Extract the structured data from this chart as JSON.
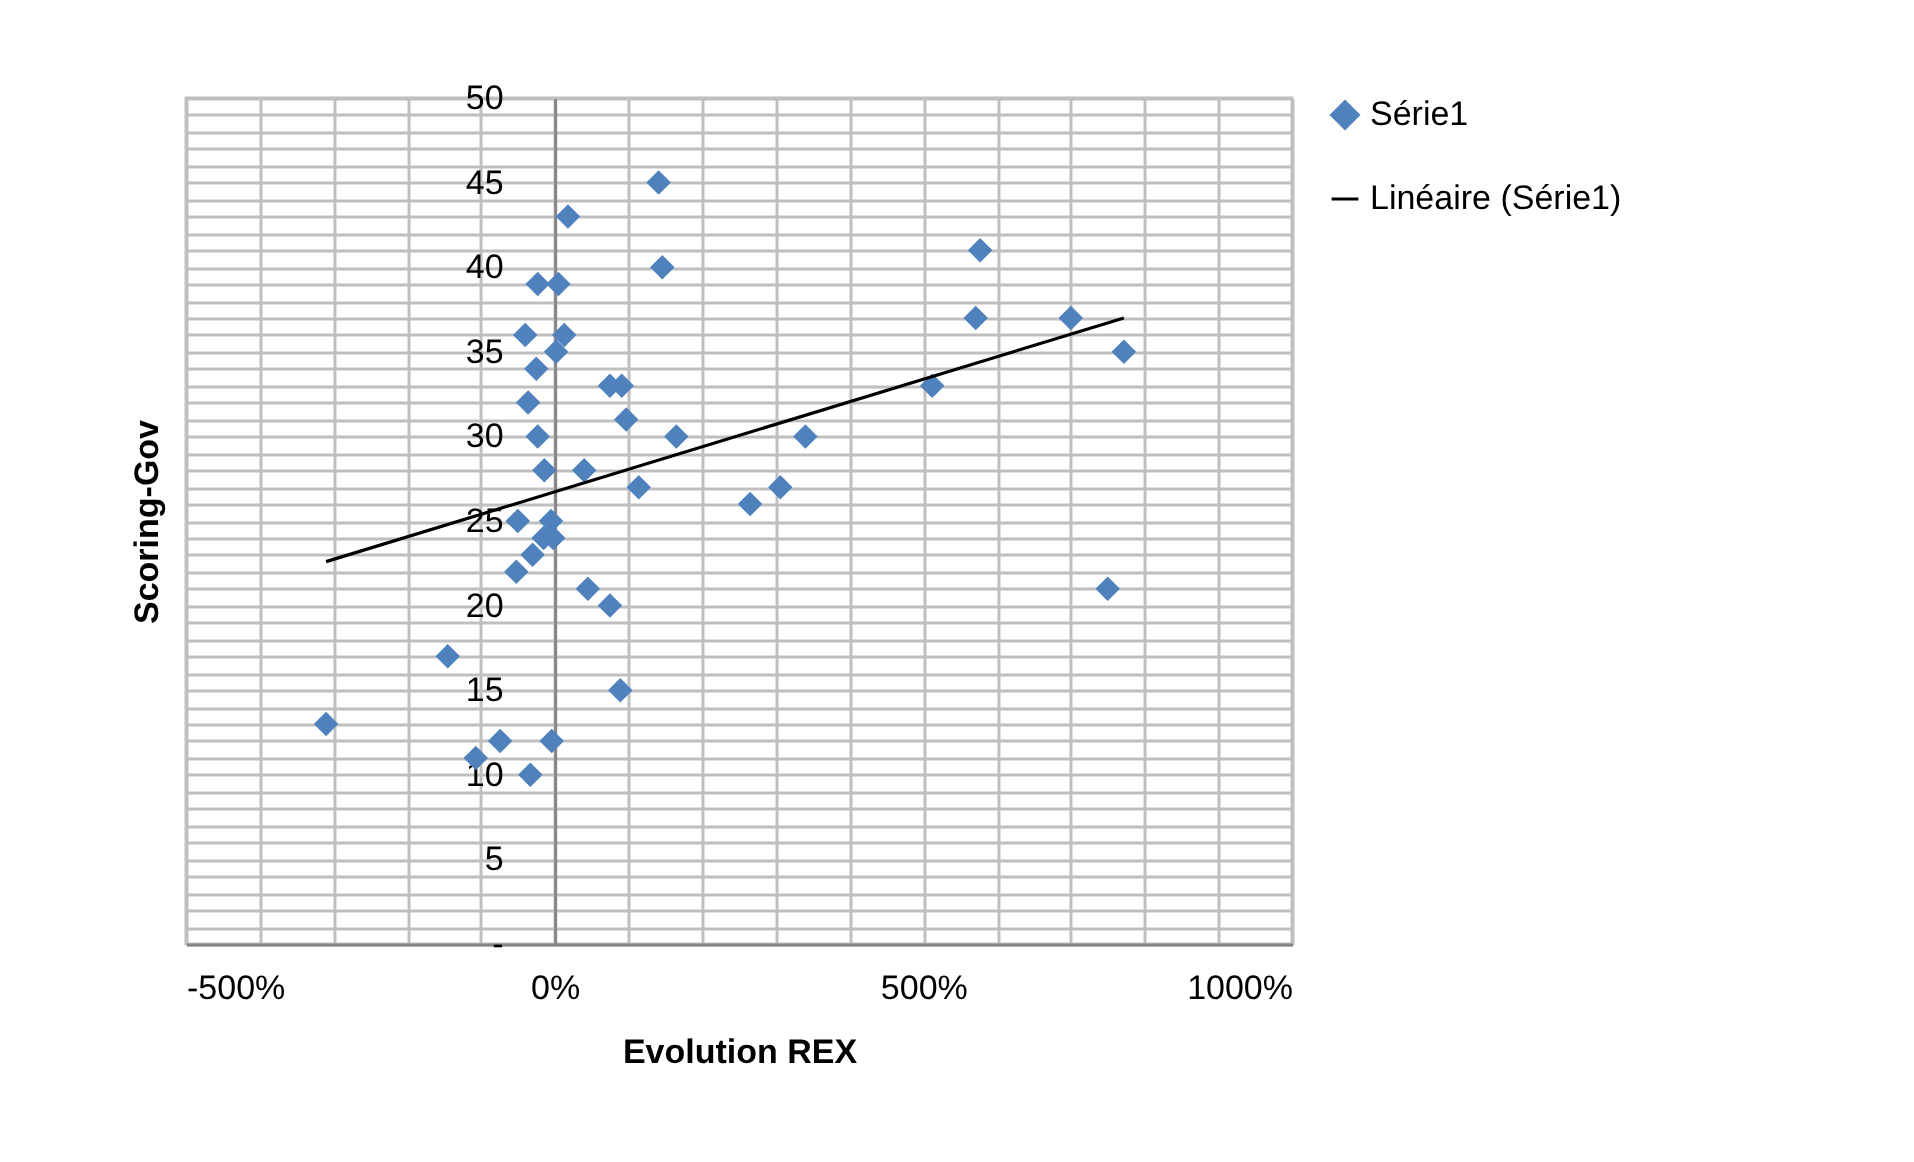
{
  "chart_data": {
    "type": "scatter",
    "xlabel": "Evolution REX",
    "ylabel": "Scoring-Gov",
    "series": [
      {
        "name": "Série1",
        "type": "scatter",
        "marker": "diamond",
        "color": "#4f81bd",
        "x": [
          -310,
          -145,
          -107,
          -74,
          -33,
          -4,
          89,
          45,
          75,
          -52,
          -50,
          -30,
          -15,
          -5,
          -2,
          -23,
          5,
          18,
          141,
          146,
          -40,
          13,
          2,
          -25,
          -36,
          -23,
          -14,
          40,
          75,
          91,
          97,
          114,
          165,
          265,
          306,
          340,
          512,
          577,
          571,
          700,
          772,
          750
        ],
        "values": [
          13,
          17,
          11,
          12,
          10,
          12,
          15,
          21,
          20,
          22,
          25,
          23,
          24,
          25,
          24,
          39,
          39,
          43,
          45,
          40,
          36,
          36,
          35,
          34,
          32,
          30,
          28,
          28,
          33,
          33,
          31,
          27,
          30,
          26,
          27,
          30,
          33,
          41,
          37,
          37,
          35,
          21
        ]
      },
      {
        "name": "Linéaire (Série1)",
        "type": "line",
        "color": "#000000",
        "line_style": "solid",
        "x": [
          -310,
          772
        ],
        "values": [
          22.6,
          37.0
        ]
      }
    ],
    "xlim": [
      -500,
      1000
    ],
    "xticks": [
      {
        "value": -500,
        "label": "-500%"
      },
      {
        "value": -400,
        "label": null
      },
      {
        "value": -300,
        "label": null
      },
      {
        "value": -200,
        "label": null
      },
      {
        "value": -100,
        "label": null
      },
      {
        "value": 0,
        "label": "0%"
      },
      {
        "value": 100,
        "label": null
      },
      {
        "value": 200,
        "label": null
      },
      {
        "value": 300,
        "label": null
      },
      {
        "value": 400,
        "label": null
      },
      {
        "value": 500,
        "label": "500%"
      },
      {
        "value": 600,
        "label": null
      },
      {
        "value": 700,
        "label": null
      },
      {
        "value": 800,
        "label": null
      },
      {
        "value": 900,
        "label": null
      },
      {
        "value": 1000,
        "label": "1000%"
      }
    ],
    "ylim": [
      0,
      50
    ],
    "yticks": [
      {
        "value": 0,
        "label": "-"
      },
      {
        "value": 1,
        "label": null
      },
      {
        "value": 2,
        "label": null
      },
      {
        "value": 3,
        "label": null
      },
      {
        "value": 4,
        "label": null
      },
      5,
      {
        "value": 6,
        "label": null
      },
      {
        "value": 7,
        "label": null
      },
      {
        "value": 8,
        "label": null
      },
      {
        "value": 9,
        "label": null
      },
      10,
      {
        "value": 11,
        "label": null
      },
      {
        "value": 12,
        "label": null
      },
      {
        "value": 13,
        "label": null
      },
      {
        "value": 14,
        "label": null
      },
      15,
      {
        "value": 16,
        "label": null
      },
      {
        "value": 17,
        "label": null
      },
      {
        "value": 18,
        "label": null
      },
      {
        "value": 19,
        "label": null
      },
      20,
      {
        "value": 21,
        "label": null
      },
      {
        "value": 22,
        "label": null
      },
      {
        "value": 23,
        "label": null
      },
      {
        "value": 24,
        "label": null
      },
      25,
      {
        "value": 26,
        "label": null
      },
      {
        "value": 27,
        "label": null
      },
      {
        "value": 28,
        "label": null
      },
      {
        "value": 29,
        "label": null
      },
      30,
      {
        "value": 31,
        "label": null
      },
      {
        "value": 32,
        "label": null
      },
      {
        "value": 33,
        "label": null
      },
      {
        "value": 34,
        "label": null
      },
      35,
      {
        "value": 36,
        "label": null
      },
      {
        "value": 37,
        "label": null
      },
      {
        "value": 38,
        "label": null
      },
      {
        "value": 39,
        "label": null
      },
      40,
      {
        "value": 41,
        "label": null
      },
      {
        "value": 42,
        "label": null
      },
      {
        "value": 43,
        "label": null
      },
      {
        "value": 44,
        "label": null
      },
      45,
      {
        "value": 46,
        "label": null
      },
      {
        "value": 47,
        "label": null
      },
      {
        "value": 48,
        "label": null
      },
      {
        "value": 49,
        "label": null
      },
      50
    ],
    "grid": true,
    "legend": "right"
  }
}
